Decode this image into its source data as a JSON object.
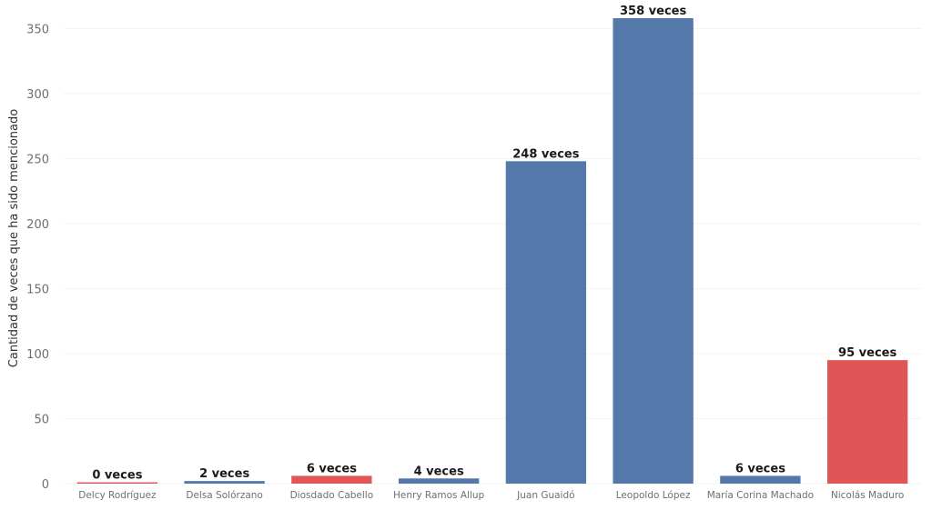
{
  "chart_data": {
    "type": "bar",
    "title": "",
    "xlabel": "",
    "ylabel": "Cantidad de veces que ha sido mencionado",
    "ylim": [
      0,
      365
    ],
    "yticks": [
      0,
      50,
      100,
      150,
      200,
      250,
      300,
      350
    ],
    "grid": true,
    "categories": [
      "Delcy Rodríguez",
      "Delsa Solórzano",
      "Diosdado Cabello",
      "Henry Ramos Allup",
      "Juan Guaidó",
      "Leopoldo López",
      "María Corina Machado",
      "Nicolás Maduro"
    ],
    "values": [
      0,
      2,
      6,
      4,
      248,
      358,
      6,
      95
    ],
    "data_labels": [
      "0 veces",
      "2 veces",
      "6 veces",
      "4 veces",
      "248 veces",
      "358 veces",
      "6 veces",
      "95 veces"
    ],
    "colors": [
      "#e05555",
      "#5578aa",
      "#e05555",
      "#5578aa",
      "#5578aa",
      "#5578aa",
      "#5578aa",
      "#e05555"
    ]
  }
}
